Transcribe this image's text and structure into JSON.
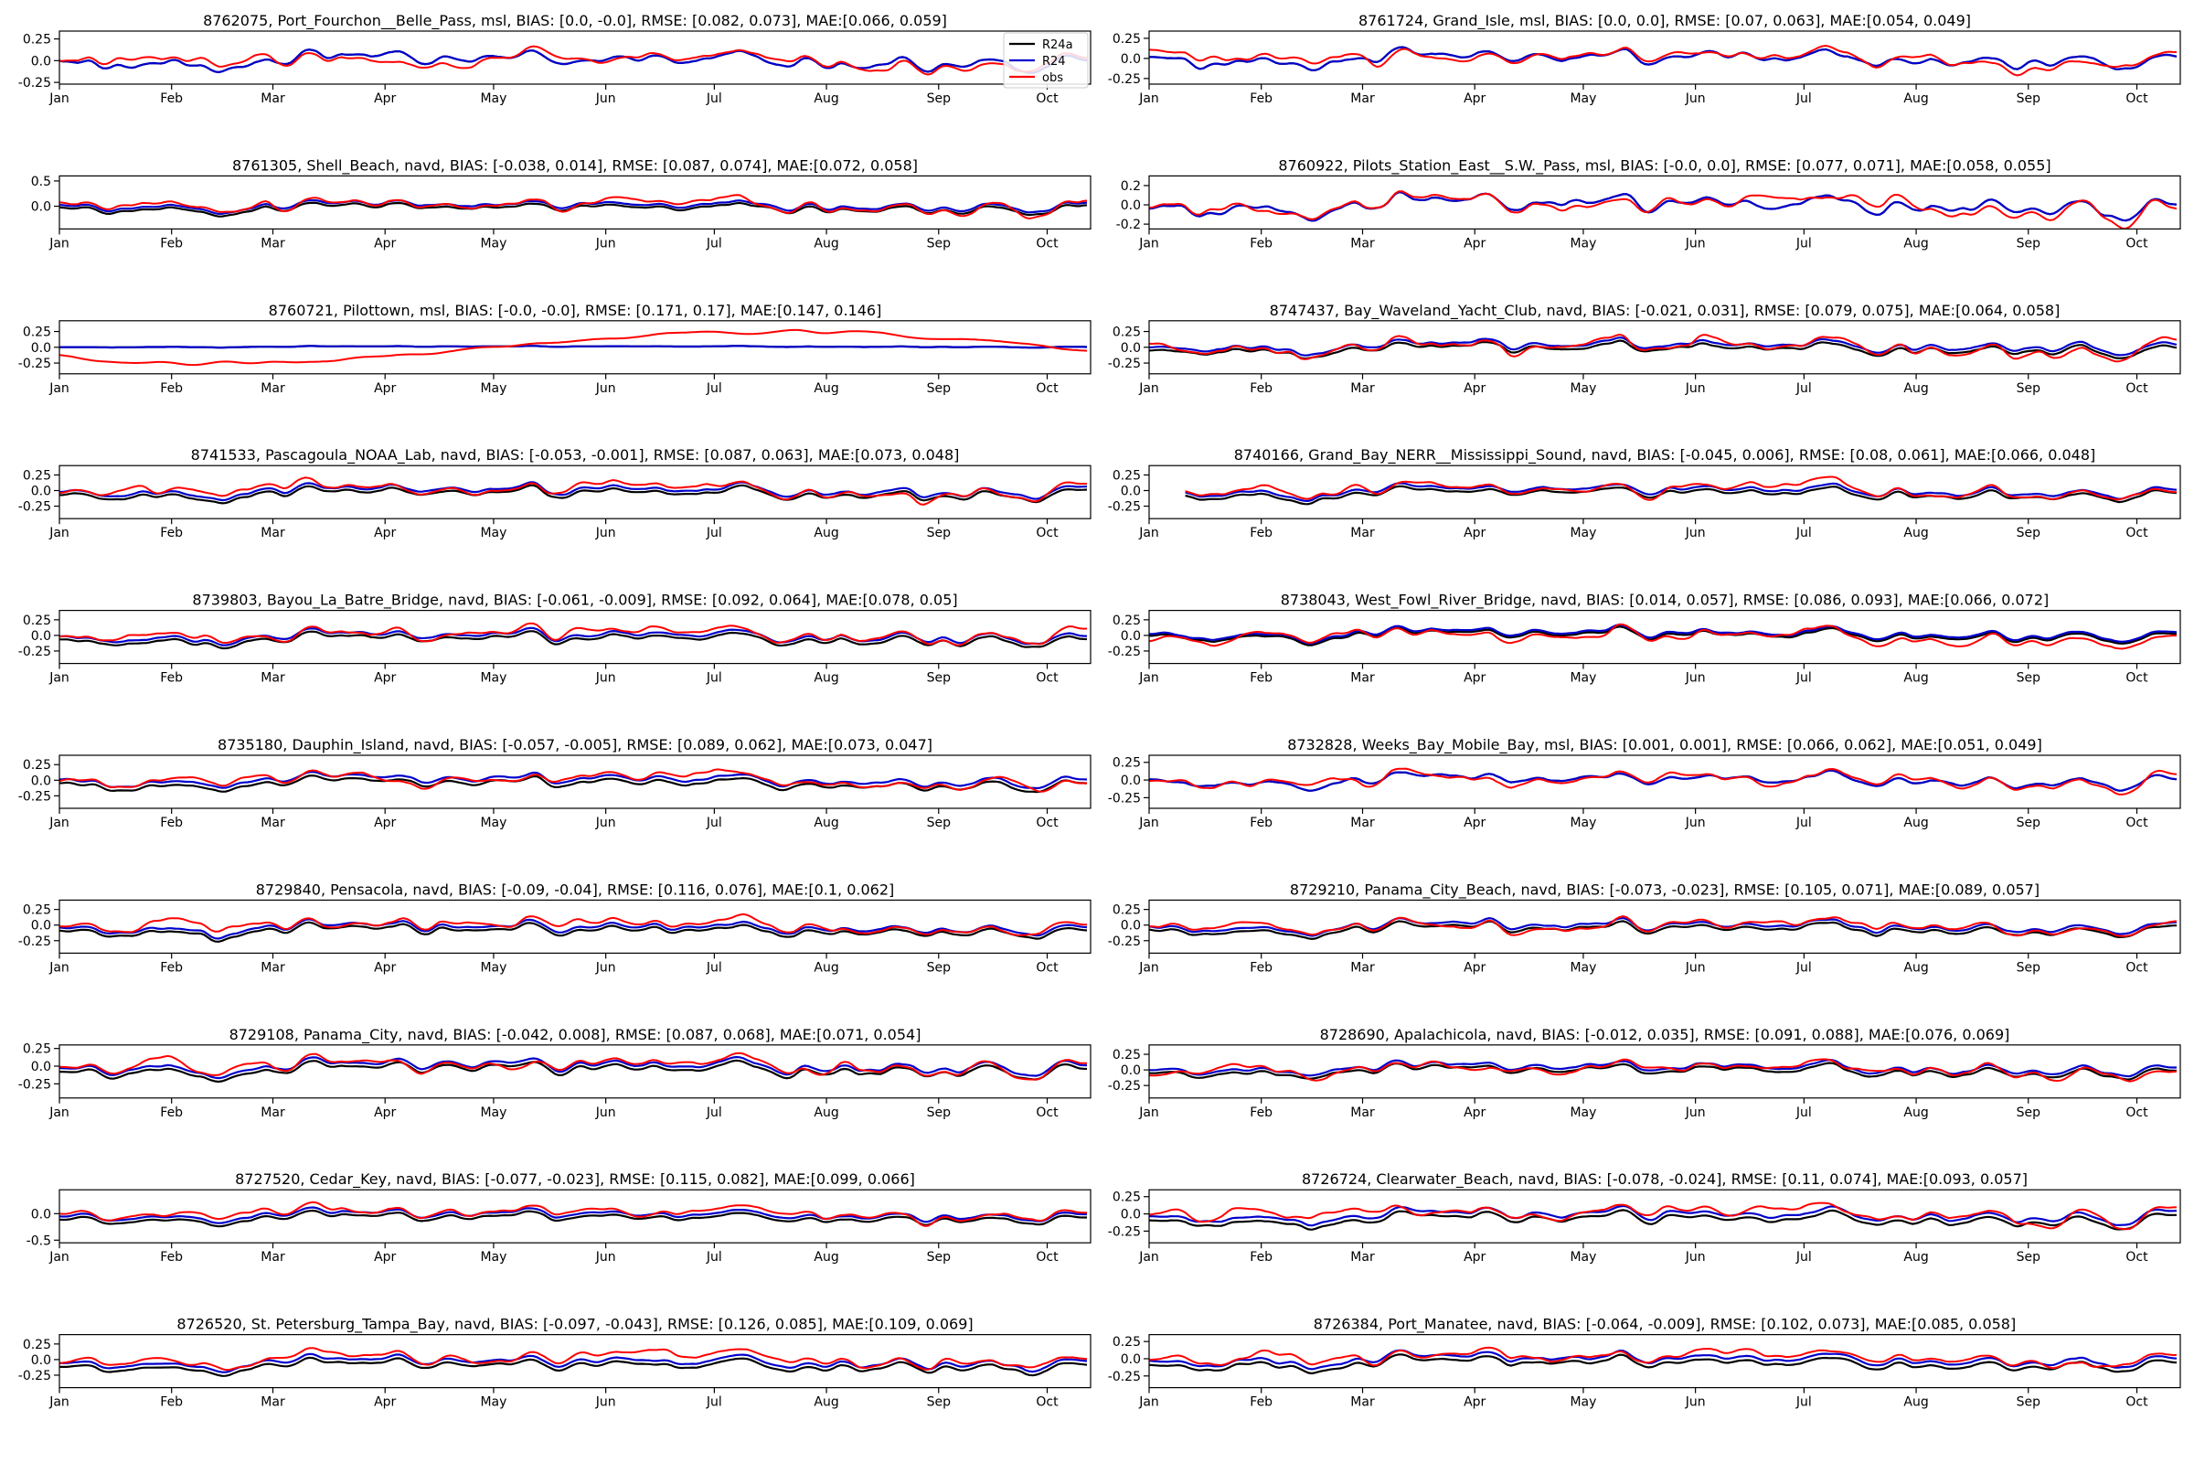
{
  "figure": {
    "months": [
      "Jan",
      "Feb",
      "Mar",
      "Apr",
      "May",
      "Jun",
      "Jul",
      "Aug",
      "Sep",
      "Oct"
    ],
    "legend": [
      {
        "name": "R24a",
        "color": "#000000"
      },
      {
        "name": "R24",
        "color": "#0000cc"
      },
      {
        "name": "obs",
        "color": "#ff0000"
      }
    ]
  },
  "chart_data": [
    {
      "type": "line",
      "title": "8762075, Port_Fourchon__Belle_Pass, msl, BIAS: [0.0, -0.0], RMSE: [0.082, 0.073], MAE:[0.066, 0.059]",
      "yticks": [
        0.25,
        0.0,
        -0.25
      ],
      "ylim": [
        -0.27,
        0.34
      ],
      "offset_a": 0.0,
      "offset_b": 0.0,
      "obs_shift": 0.0,
      "obs_amp": 1.0,
      "has_legend": true
    },
    {
      "type": "line",
      "title": "8761724, Grand_Isle, msl, BIAS: [0.0, 0.0], RMSE: [0.07, 0.063], MAE:[0.054, 0.049]",
      "yticks": [
        0.25,
        0.0,
        -0.25
      ],
      "ylim": [
        -0.32,
        0.34
      ],
      "offset_a": 0.0,
      "offset_b": 0.0,
      "obs_shift": 0.0,
      "obs_amp": 1.0
    },
    {
      "type": "line",
      "title": "8761305, Shell_Beach, navd, BIAS: [-0.038, 0.014], RMSE: [0.087, 0.074], MAE:[0.072, 0.058]",
      "yticks": [
        0.5,
        0.0
      ],
      "ylim": [
        -0.45,
        0.6
      ],
      "offset_a": -0.04,
      "offset_b": 0.01,
      "obs_shift": 0.0,
      "obs_amp": 1.4
    },
    {
      "type": "line",
      "title": "8760922, Pilots_Station_East__S.W._Pass, msl, BIAS: [-0.0, 0.0], RMSE: [0.077, 0.071], MAE:[0.058, 0.055]",
      "yticks": [
        0.2,
        0.0,
        -0.2
      ],
      "ylim": [
        -0.25,
        0.3
      ],
      "offset_a": 0.0,
      "offset_b": 0.0,
      "obs_shift": 0.0,
      "obs_amp": 1.0
    },
    {
      "type": "line",
      "title": "8760721, Pilottown, msl, BIAS: [-0.0, -0.0], RMSE: [0.171, 0.17], MAE:[0.147, 0.146]",
      "yticks": [
        0.25,
        0.0,
        -0.25
      ],
      "ylim": [
        -0.42,
        0.42
      ],
      "offset_a": 0.0,
      "offset_b": 0.0,
      "obs_shift": 0.0,
      "obs_amp": 1.0,
      "flat_model": true
    },
    {
      "type": "line",
      "title": "8747437, Bay_Waveland_Yacht_Club, navd, BIAS: [-0.021, 0.031], RMSE: [0.079, 0.075], MAE:[0.064, 0.058]",
      "yticks": [
        0.25,
        0.0,
        -0.25
      ],
      "ylim": [
        -0.42,
        0.42
      ],
      "offset_a": -0.03,
      "offset_b": 0.02,
      "obs_shift": 0.0,
      "obs_amp": 1.4
    },
    {
      "type": "line",
      "title": "8741533, Pascagoula_NOAA_Lab, navd, BIAS: [-0.053, -0.001], RMSE: [0.087, 0.063], MAE:[0.073, 0.048]",
      "yticks": [
        0.25,
        0.0,
        -0.25
      ],
      "ylim": [
        -0.45,
        0.4
      ],
      "offset_a": -0.05,
      "offset_b": 0.0,
      "obs_shift": 0.02,
      "obs_amp": 1.2
    },
    {
      "type": "line",
      "title": "8740166, Grand_Bay_NERR__Mississippi_Sound, navd, BIAS: [-0.045, 0.006], RMSE: [0.08, 0.061], MAE:[0.066, 0.048]",
      "yticks": [
        0.25,
        0.0,
        -0.25
      ],
      "ylim": [
        -0.45,
        0.4
      ],
      "offset_a": -0.05,
      "offset_b": 0.0,
      "obs_shift": 0.02,
      "obs_amp": 1.2,
      "start_late": true
    },
    {
      "type": "line",
      "title": "8739803, Bayou_La_Batre_Bridge, navd, BIAS: [-0.061, -0.009], RMSE: [0.092, 0.064], MAE:[0.078, 0.05]",
      "yticks": [
        0.25,
        0.0,
        -0.25
      ],
      "ylim": [
        -0.45,
        0.4
      ],
      "offset_a": -0.06,
      "offset_b": -0.01,
      "obs_shift": 0.02,
      "obs_amp": 1.2
    },
    {
      "type": "line",
      "title": "8738043, West_Fowl_River_Bridge, navd, BIAS: [0.014, 0.057], RMSE: [0.086, 0.093], MAE:[0.066, 0.072]",
      "yticks": [
        0.25,
        0.0,
        -0.25
      ],
      "ylim": [
        -0.45,
        0.4
      ],
      "offset_a": 0.0,
      "offset_b": 0.03,
      "obs_shift": -0.03,
      "obs_amp": 1.3
    },
    {
      "type": "line",
      "title": "8735180, Dauphin_Island, navd, BIAS: [-0.057, -0.005], RMSE: [0.089, 0.062], MAE:[0.073, 0.047]",
      "yticks": [
        0.25,
        0.0,
        -0.25
      ],
      "ylim": [
        -0.45,
        0.4
      ],
      "offset_a": -0.06,
      "offset_b": 0.0,
      "obs_shift": 0.02,
      "obs_amp": 1.1
    },
    {
      "type": "line",
      "title": "8732828, Weeks_Bay_Mobile_Bay, msl, BIAS: [0.001, 0.001], RMSE: [0.066, 0.062], MAE:[0.051, 0.049]",
      "yticks": [
        0.25,
        0.0,
        -0.25
      ],
      "ylim": [
        -0.4,
        0.35
      ],
      "offset_a": 0.0,
      "offset_b": 0.0,
      "obs_shift": 0.0,
      "obs_amp": 1.2
    },
    {
      "type": "line",
      "title": "8729840, Pensacola, navd, BIAS: [-0.09, -0.04], RMSE: [0.116, 0.076], MAE:[0.1, 0.062]",
      "yticks": [
        0.25,
        0.0,
        -0.25
      ],
      "ylim": [
        -0.45,
        0.4
      ],
      "offset_a": -0.09,
      "offset_b": -0.04,
      "obs_shift": 0.0,
      "obs_amp": 1.1
    },
    {
      "type": "line",
      "title": "8729210, Panama_City_Beach, navd, BIAS: [-0.073, -0.023], RMSE: [0.105, 0.071], MAE:[0.089, 0.057]",
      "yticks": [
        0.25,
        0.0,
        -0.25
      ],
      "ylim": [
        -0.45,
        0.4
      ],
      "offset_a": -0.07,
      "offset_b": -0.02,
      "obs_shift": 0.0,
      "obs_amp": 1.1
    },
    {
      "type": "line",
      "title": "8729108, Panama_City, navd, BIAS: [-0.042, 0.008], RMSE: [0.087, 0.068], MAE:[0.071, 0.054]",
      "yticks": [
        0.25,
        0.0,
        -0.25
      ],
      "ylim": [
        -0.45,
        0.3
      ],
      "offset_a": -0.05,
      "offset_b": 0.0,
      "obs_shift": 0.0,
      "obs_amp": 1.1
    },
    {
      "type": "line",
      "title": "8728690, Apalachicola, navd, BIAS: [-0.012, 0.035], RMSE: [0.091, 0.088], MAE:[0.076, 0.069]",
      "yticks": [
        0.25,
        0.0,
        -0.25
      ],
      "ylim": [
        -0.45,
        0.4
      ],
      "offset_a": -0.02,
      "offset_b": 0.03,
      "obs_shift": 0.0,
      "obs_amp": 1.2
    },
    {
      "type": "line",
      "title": "8727520, Cedar_Key, navd, BIAS: [-0.077, -0.023], RMSE: [0.115, 0.082], MAE:[0.099, 0.066]",
      "yticks": [
        0.0,
        -0.5
      ],
      "ylim": [
        -0.55,
        0.45
      ],
      "offset_a": -0.08,
      "offset_b": -0.02,
      "obs_shift": 0.02,
      "obs_amp": 1.3
    },
    {
      "type": "line",
      "title": "8726724, Clearwater_Beach, navd, BIAS: [-0.078, -0.024], RMSE: [0.11, 0.074], MAE:[0.093, 0.057]",
      "yticks": [
        0.25,
        0.0,
        -0.25
      ],
      "ylim": [
        -0.42,
        0.35
      ],
      "offset_a": -0.08,
      "offset_b": -0.02,
      "obs_shift": 0.0,
      "obs_amp": 1.1
    },
    {
      "type": "line",
      "title": "8726520, St. Petersburg_Tampa_Bay, navd, BIAS: [-0.097, -0.043], RMSE: [0.126, 0.085], MAE:[0.109, 0.069]",
      "yticks": [
        0.25,
        0.0,
        -0.25
      ],
      "ylim": [
        -0.45,
        0.4
      ],
      "offset_a": -0.1,
      "offset_b": -0.04,
      "obs_shift": 0.02,
      "obs_amp": 1.1
    },
    {
      "type": "line",
      "title": "8726384, Port_Manatee, navd, BIAS: [-0.064, -0.009], RMSE: [0.102, 0.073], MAE:[0.085, 0.058]",
      "yticks": [
        0.25,
        0.0,
        -0.25
      ],
      "ylim": [
        -0.42,
        0.35
      ],
      "offset_a": -0.07,
      "offset_b": -0.01,
      "obs_shift": 0.02,
      "obs_amp": 1.1
    }
  ]
}
